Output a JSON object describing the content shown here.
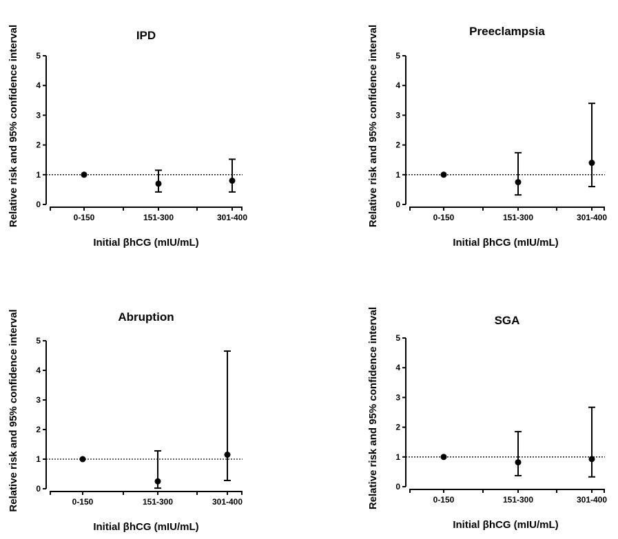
{
  "chart_data": [
    {
      "type": "scatter",
      "title": "IPD",
      "xlabel": "Initial βhCG (mIU/mL)",
      "ylabel": "Relative risk and 95% confidence interval",
      "categories": [
        "0-150",
        "151-300",
        "301-400"
      ],
      "yticks": [
        "0",
        "1",
        "2",
        "3",
        "4",
        "5"
      ],
      "ylim": [
        0,
        5
      ],
      "reference_line": 1,
      "points": [
        {
          "x": "0-150",
          "y": 1.0,
          "low": 1.0,
          "high": 1.0
        },
        {
          "x": "151-300",
          "y": 0.7,
          "low": 0.42,
          "high": 1.15
        },
        {
          "x": "301-400",
          "y": 0.8,
          "low": 0.42,
          "high": 1.52
        }
      ]
    },
    {
      "type": "scatter",
      "title": "Preeclampsia",
      "xlabel": "Initial βhCG (mIU/mL)",
      "ylabel": "Relative risk and 95% confidence interval",
      "categories": [
        "0-150",
        "151-300",
        "301-400"
      ],
      "yticks": [
        "0",
        "1",
        "2",
        "3",
        "4",
        "5"
      ],
      "ylim": [
        0,
        5
      ],
      "reference_line": 1,
      "points": [
        {
          "x": "0-150",
          "y": 1.0,
          "low": 1.0,
          "high": 1.0
        },
        {
          "x": "151-300",
          "y": 0.75,
          "low": 0.32,
          "high": 1.74
        },
        {
          "x": "301-400",
          "y": 1.4,
          "low": 0.6,
          "high": 3.4
        }
      ]
    },
    {
      "type": "scatter",
      "title": "Abruption",
      "xlabel": "Initial βhCG (mIU/mL)",
      "ylabel": "Relative risk and 95% confidence interval",
      "categories": [
        "0-150",
        "151-300",
        "301-400"
      ],
      "yticks": [
        "0",
        "1",
        "2",
        "3",
        "4",
        "5"
      ],
      "ylim": [
        0,
        5
      ],
      "reference_line": 1,
      "points": [
        {
          "x": "0-150",
          "y": 1.0,
          "low": 1.0,
          "high": 1.0
        },
        {
          "x": "151-300",
          "y": 0.25,
          "low": 0.02,
          "high": 1.28
        },
        {
          "x": "301-400",
          "y": 1.15,
          "low": 0.28,
          "high": 4.65
        }
      ]
    },
    {
      "type": "scatter",
      "title": "SGA",
      "xlabel": "Initial βhCG (mIU/mL)",
      "ylabel": "Relative risk and 95% confidence interval",
      "categories": [
        "0-150",
        "151-300",
        "301-400"
      ],
      "yticks": [
        "0",
        "1",
        "2",
        "3",
        "4",
        "5"
      ],
      "ylim": [
        0,
        5
      ],
      "reference_line": 1,
      "points": [
        {
          "x": "0-150",
          "y": 1.0,
          "low": 1.0,
          "high": 1.0
        },
        {
          "x": "151-300",
          "y": 0.82,
          "low": 0.37,
          "high": 1.85
        },
        {
          "x": "301-400",
          "y": 0.93,
          "low": 0.33,
          "high": 2.67
        }
      ]
    }
  ]
}
